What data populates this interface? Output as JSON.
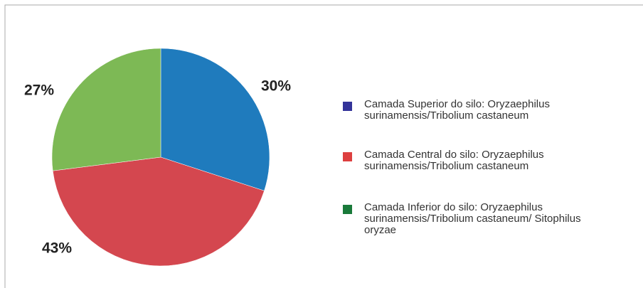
{
  "chart_data": {
    "type": "pie",
    "categories": [
      "Camada Superior do silo: Oryzaephilus surinamensis/Tribolium castaneum",
      "Camada Central do silo: Oryzaephilus surinamensis/Tribolium castaneum",
      "Camada Inferior do silo: Oryzaephilus surinamensis/Tribolium castaneum/ Sitophilus oryzae"
    ],
    "values": [
      30,
      43,
      27
    ],
    "value_labels": [
      "30%",
      "43%",
      "27%"
    ],
    "colors": [
      "#1f7bbd",
      "#d4474f",
      "#7db955"
    ],
    "legend_colors": [
      "#333399",
      "#dd3f3f",
      "#1a7a3a"
    ],
    "legend": "right"
  }
}
